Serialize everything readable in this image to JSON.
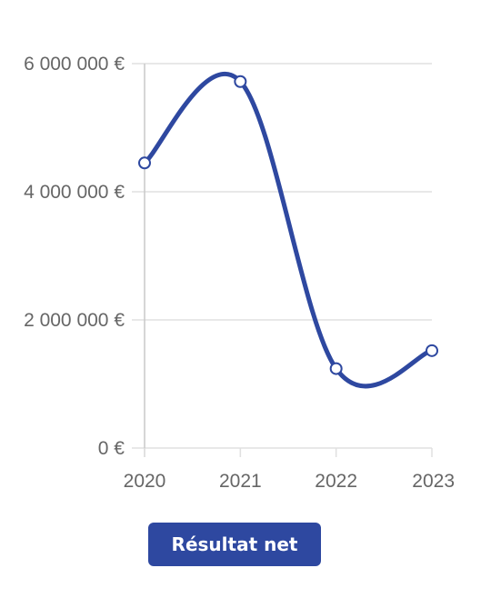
{
  "chart_data": {
    "type": "line",
    "x": [
      "2020",
      "2021",
      "2022",
      "2023"
    ],
    "series": [
      {
        "name": "Résultat net",
        "values": [
          4450000,
          5720000,
          1240000,
          1520000
        ],
        "color": "#2e48a0"
      }
    ],
    "ylim": [
      0,
      6000000
    ],
    "yticks": [
      {
        "value": 0,
        "label": "0 €"
      },
      {
        "value": 2000000,
        "label": "2 000 000 €"
      },
      {
        "value": 4000000,
        "label": "4 000 000 €"
      },
      {
        "value": 6000000,
        "label": "6 000 000 €"
      }
    ],
    "grid": true,
    "curve": "smooth",
    "legend": "bottom"
  },
  "legend": {
    "label": "Résultat net"
  },
  "colors": {
    "series": "#2e48a0",
    "grid": "#e0e0e0",
    "axis": "#c8c8c8",
    "tick_text": "#666666",
    "point_fill": "#ffffff"
  }
}
